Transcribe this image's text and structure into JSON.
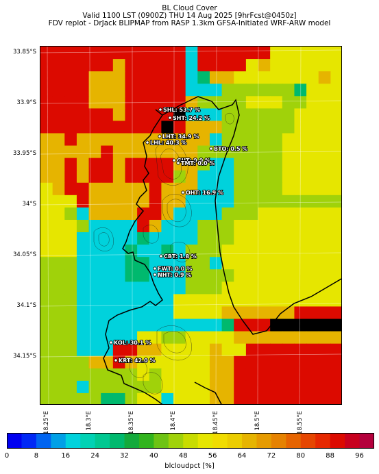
{
  "titles": {
    "line1": "BL Cloud Cover",
    "line2": "Valid 1100 LST (0900Z) THU 14 Aug 2025 [9hrFcst@0450z]",
    "line3": "FDV replot - DrJack BLIPMAP from RASP 1.3km GFSA-Initiated WRF-ARW model"
  },
  "lat_labels": [
    "33.85°S",
    "33.9°S",
    "33.95°S",
    "34°S",
    "34.05°S",
    "34.1°S",
    "34.15°S"
  ],
  "lon_labels": [
    "18.25°E",
    "18.3°E",
    "18.35°E",
    "18.4°E",
    "18.45°E",
    "18.5°E",
    "18.55°E"
  ],
  "stations": [
    {
      "label": "SHL: 53.7 %"
    },
    {
      "label": "SHT: 24.2 %"
    },
    {
      "label": "LHT: 34.9 %"
    },
    {
      "label": "LHL: 40.3 %"
    },
    {
      "label": "BTO: 0.5 %"
    },
    {
      "label": "GUT: 0.0 %"
    },
    {
      "label": "TMT: 0.0 %"
    },
    {
      "label": "OHT: 16.9 %"
    },
    {
      "label": "CBT: 1.8 %"
    },
    {
      "label": "FWT: 0.0 %"
    },
    {
      "label": "NHT: 0.9 %"
    },
    {
      "label": "KOL: 30.1 %"
    },
    {
      "label": "KRT: 42.0 %"
    }
  ],
  "colorbar": {
    "label": "blcloudpct [%]",
    "ticks": [
      "0",
      "8",
      "16",
      "24",
      "32",
      "40",
      "48",
      "56",
      "64",
      "72",
      "80",
      "88",
      "96"
    ],
    "min": 0,
    "max": 100,
    "step": 4,
    "colors": [
      "#0000f0",
      "#0028f5",
      "#0064f0",
      "#00a0e6",
      "#00d2dc",
      "#00d2b4",
      "#00c891",
      "#00b96e",
      "#14aa3c",
      "#32b41e",
      "#6ec314",
      "#a0d20a",
      "#c8dc00",
      "#e6e600",
      "#f0dc00",
      "#ebcd00",
      "#e6b400",
      "#e69b00",
      "#e68200",
      "#e66400",
      "#e64600",
      "#e62800",
      "#dc0a00",
      "#c8001e",
      "#b4003c"
    ]
  },
  "grid": {
    "rows": 29,
    "cols": 25,
    "values": [
      "6666666666661666666444444",
      "6666665666661666645444444",
      "6666555666661255444444454",
      "6666555666661113333332444",
      "6666555666665333344433444",
      "6666665666671113333334444",
      "6666666666765553333334444",
      "5565555555555513333344444",
      "5555565555555333333344444",
      "5565665666655311333344444",
      "5565665666635111333344444",
      "4566555556555111333344444",
      "4446555556551111333333333",
      "4431555566511113334444444",
      "4443111165111333444444444",
      "4441111121111333444444444",
      "4441111211213334444444444",
      "3331111221113314444444444",
      "3331111221113333444444444",
      "3331111111113334444444444",
      "3331111111144444444444444",
      "3331111111144445555556666",
      "3331111111111112666777777",
      "3331111144334444555555555",
      "3331116655444454466666666",
      "3333556544444455666666666",
      "3333333343444455666666666",
      "3331333333444455666666666",
      "3333322344144455666666666"
    ]
  }
}
